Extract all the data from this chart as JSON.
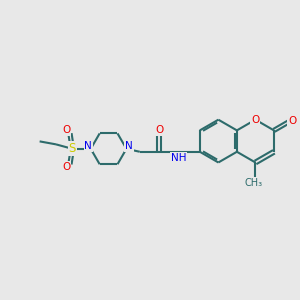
{
  "bg_color": "#e8e8e8",
  "bond_color": "#2d6b6b",
  "N_color": "#0000ee",
  "O_color": "#ee0000",
  "S_color": "#cccc00",
  "C_color": "#2d6b6b",
  "bond_width": 1.5,
  "figsize": [
    3.0,
    3.0
  ],
  "dpi": 100,
  "xlim": [
    0,
    10
  ],
  "ylim": [
    0,
    10
  ]
}
